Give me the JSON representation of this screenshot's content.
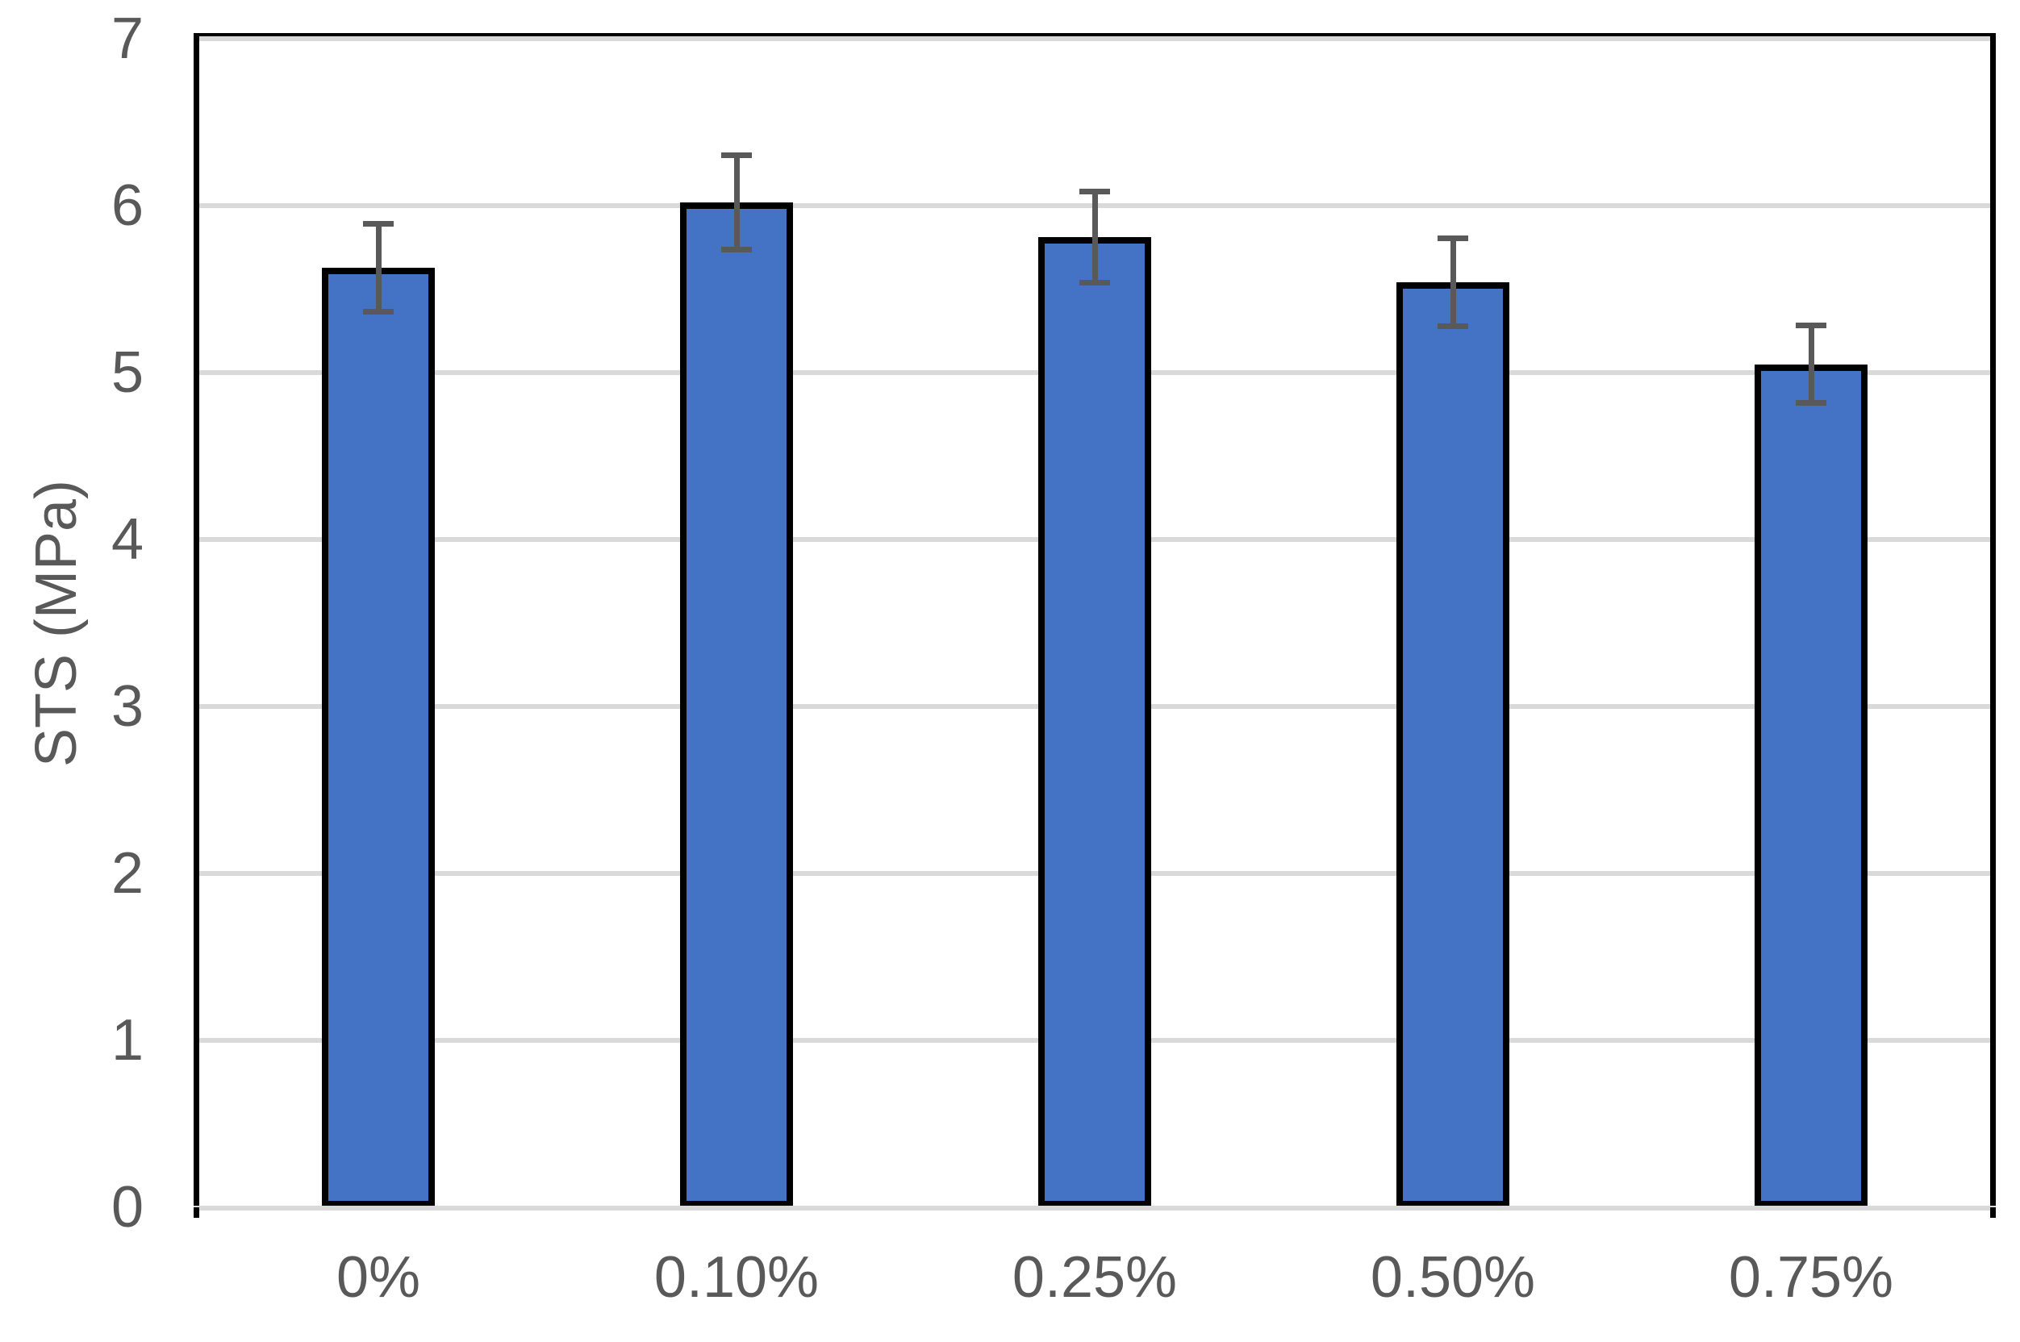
{
  "chart_data": {
    "type": "bar",
    "title": "",
    "categories": [
      "0%",
      "0.10%",
      "0.25%",
      "0.50%",
      "0.75%"
    ],
    "values": [
      5.63,
      6.02,
      5.81,
      5.54,
      5.05
    ],
    "error_bars": [
      0.28,
      0.3,
      0.29,
      0.28,
      0.25
    ],
    "xlabel": "",
    "ylabel": "STS (MPa)",
    "ylim": [
      0,
      7
    ],
    "yticks": [
      0,
      1,
      2,
      3,
      4,
      5,
      6,
      7
    ],
    "grid": true,
    "legend": false,
    "colors": {
      "bar_fill": "#4472C4",
      "bar_border": "#000000",
      "error_bar": "#595959",
      "gridline": "#D9D9D9",
      "x_axis_line": "#D9D9D9",
      "plot_border": "#000000",
      "tick_label_text": "#595959"
    }
  }
}
